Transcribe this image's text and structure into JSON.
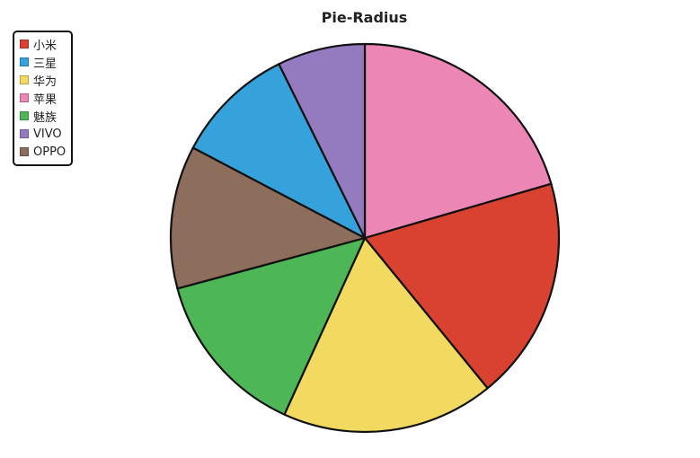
{
  "chart_data": {
    "type": "pie",
    "title": "Pie-Radius",
    "legend_position": "top-left",
    "start_angle_deg": 0,
    "direction": "clockwise",
    "slices": [
      {
        "label": "苹果",
        "value": 20.5,
        "color": "#ec86b4"
      },
      {
        "label": "小米",
        "value": 18.6,
        "color": "#d94131"
      },
      {
        "label": "华为",
        "value": 17.7,
        "color": "#f2d95f"
      },
      {
        "label": "魅族",
        "value": 14.0,
        "color": "#4db656"
      },
      {
        "label": "OPPO",
        "value": 11.9,
        "color": "#8d6e5c"
      },
      {
        "label": "三星",
        "value": 10.0,
        "color": "#36a2db"
      },
      {
        "label": "VIVO",
        "value": 7.3,
        "color": "#947bbf"
      }
    ],
    "legend": [
      {
        "label": "小米",
        "color": "#d94131"
      },
      {
        "label": "三星",
        "color": "#36a2db"
      },
      {
        "label": "华为",
        "color": "#f2d95f"
      },
      {
        "label": "苹果",
        "color": "#ec86b4"
      },
      {
        "label": "魅族",
        "color": "#4db656"
      },
      {
        "label": "VIVO",
        "color": "#947bbf"
      },
      {
        "label": "OPPO",
        "color": "#8d6e5c"
      }
    ]
  }
}
